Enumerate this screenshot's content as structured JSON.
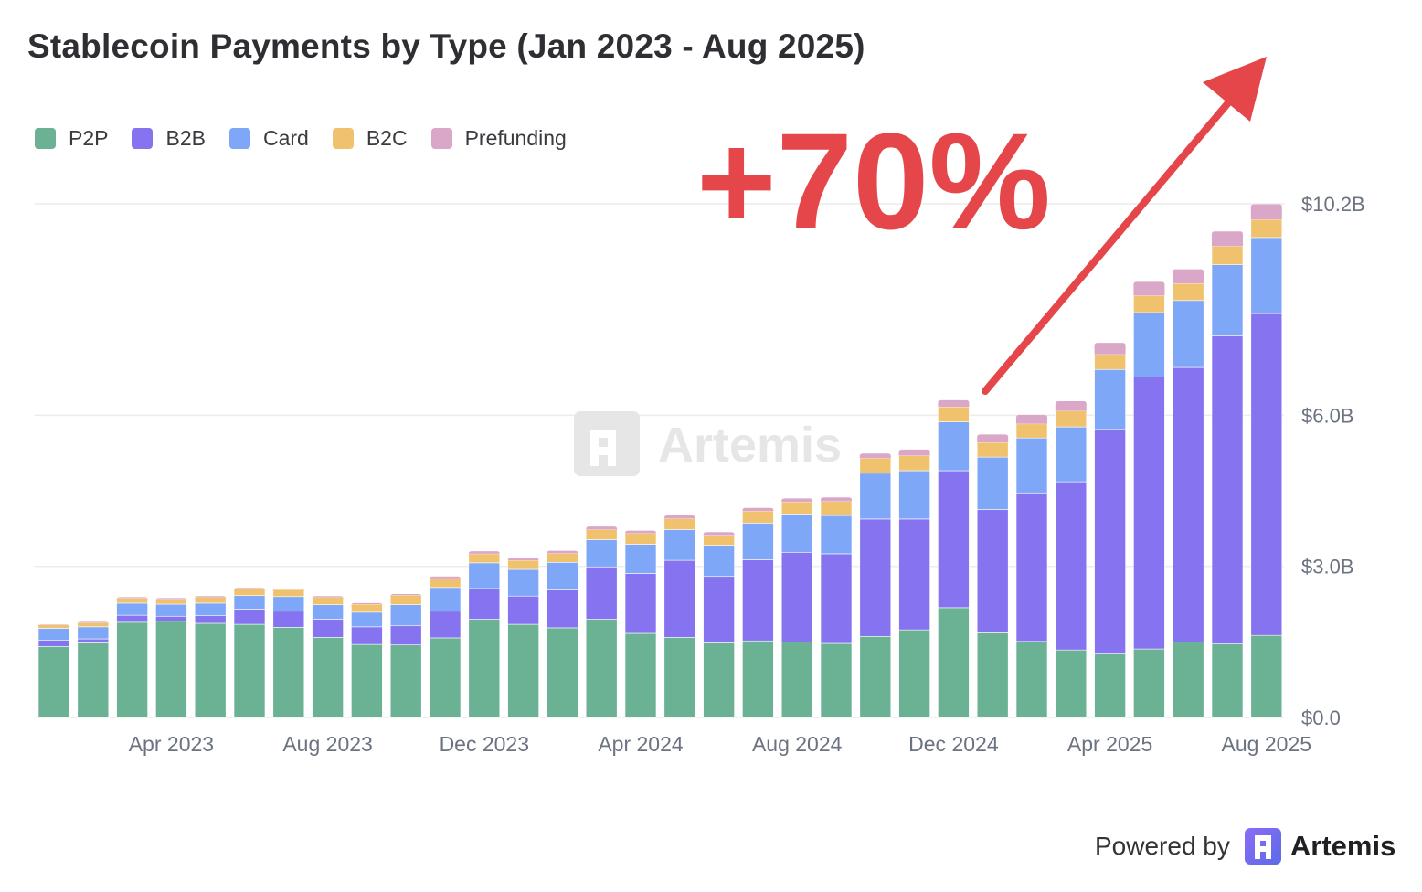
{
  "title": "Stablecoin Payments by Type (Jan 2023 - Aug 2025)",
  "annotation": "+70%",
  "watermark": "Artemis",
  "footer": {
    "powered_by": "Powered by",
    "brand": "Artemis"
  },
  "colors": {
    "annotation": "#e5464a",
    "grid": "#ececec",
    "axis_text": "#6b7280"
  },
  "chart_data": {
    "type": "bar",
    "stacked": true,
    "title": "Stablecoin Payments by Type (Jan 2023 - Aug 2025)",
    "xlabel": "",
    "ylabel": "",
    "ylim": [
      0,
      10.2
    ],
    "y_unit": "$B",
    "yticks": [
      0,
      3.0,
      6.0,
      10.2
    ],
    "ytick_labels": [
      "$0.0",
      "$3.0B",
      "$6.0B",
      "$10.2B"
    ],
    "grid": true,
    "legend_position": "top-left",
    "y_axis_side": "right",
    "categories": [
      "Jan 2023",
      "Feb 2023",
      "Mar 2023",
      "Apr 2023",
      "May 2023",
      "Jun 2023",
      "Jul 2023",
      "Aug 2023",
      "Sep 2023",
      "Oct 2023",
      "Nov 2023",
      "Dec 2023",
      "Jan 2024",
      "Feb 2024",
      "Mar 2024",
      "Apr 2024",
      "May 2024",
      "Jun 2024",
      "Jul 2024",
      "Aug 2024",
      "Sep 2024",
      "Oct 2024",
      "Nov 2024",
      "Dec 2024",
      "Jan 2025",
      "Feb 2025",
      "Mar 2025",
      "Apr 2025",
      "May 2025",
      "Jun 2025",
      "Jul 2025",
      "Aug 2025"
    ],
    "xtick_labels": [
      {
        "category": "Apr 2023",
        "label": "Apr 2023"
      },
      {
        "category": "Aug 2023",
        "label": "Aug 2023"
      },
      {
        "category": "Dec 2023",
        "label": "Dec 2023"
      },
      {
        "category": "Apr 2024",
        "label": "Apr 2024"
      },
      {
        "category": "Aug 2024",
        "label": "Aug 2024"
      },
      {
        "category": "Dec 2024",
        "label": "Dec 2024"
      },
      {
        "category": "Apr 2025",
        "label": "Apr 2025"
      },
      {
        "category": "Aug 2025",
        "label": "Aug 2025"
      }
    ],
    "series": [
      {
        "name": "P2P",
        "color": "#6bb295",
        "values": [
          1.41,
          1.48,
          1.89,
          1.91,
          1.87,
          1.85,
          1.79,
          1.59,
          1.45,
          1.44,
          1.58,
          1.95,
          1.85,
          1.78,
          1.95,
          1.67,
          1.59,
          1.48,
          1.52,
          1.5,
          1.47,
          1.61,
          1.74,
          2.18,
          1.68,
          1.51,
          1.34,
          1.26,
          1.36,
          1.5,
          1.46,
          1.63
        ]
      },
      {
        "name": "B2B",
        "color": "#8573ef",
        "values": [
          0.12,
          0.08,
          0.14,
          0.1,
          0.15,
          0.3,
          0.32,
          0.36,
          0.35,
          0.38,
          0.53,
          0.61,
          0.56,
          0.75,
          1.04,
          1.19,
          1.53,
          1.32,
          1.61,
          1.78,
          1.78,
          2.33,
          2.2,
          2.72,
          2.45,
          2.95,
          3.34,
          4.46,
          5.4,
          5.45,
          6.12,
          6.39
        ]
      },
      {
        "name": "Card",
        "color": "#7fa7f8",
        "values": [
          0.24,
          0.24,
          0.24,
          0.24,
          0.25,
          0.27,
          0.29,
          0.29,
          0.29,
          0.42,
          0.47,
          0.51,
          0.53,
          0.55,
          0.54,
          0.58,
          0.61,
          0.62,
          0.73,
          0.76,
          0.76,
          0.91,
          0.96,
          0.97,
          1.04,
          1.09,
          1.09,
          1.19,
          1.28,
          1.33,
          1.41,
          1.51
        ]
      },
      {
        "name": "B2C",
        "color": "#f0c26e",
        "values": [
          0.07,
          0.08,
          0.1,
          0.1,
          0.12,
          0.13,
          0.14,
          0.15,
          0.16,
          0.19,
          0.18,
          0.18,
          0.18,
          0.18,
          0.2,
          0.22,
          0.22,
          0.2,
          0.24,
          0.24,
          0.28,
          0.3,
          0.3,
          0.3,
          0.29,
          0.28,
          0.32,
          0.3,
          0.34,
          0.34,
          0.37,
          0.36
        ]
      },
      {
        "name": "Prefunding",
        "color": "#dba7c8",
        "values": [
          0.01,
          0.02,
          0.02,
          0.02,
          0.02,
          0.02,
          0.02,
          0.02,
          0.02,
          0.02,
          0.04,
          0.05,
          0.05,
          0.05,
          0.06,
          0.05,
          0.06,
          0.06,
          0.06,
          0.07,
          0.08,
          0.09,
          0.12,
          0.13,
          0.16,
          0.18,
          0.19,
          0.23,
          0.27,
          0.28,
          0.29,
          0.3
        ]
      }
    ]
  }
}
